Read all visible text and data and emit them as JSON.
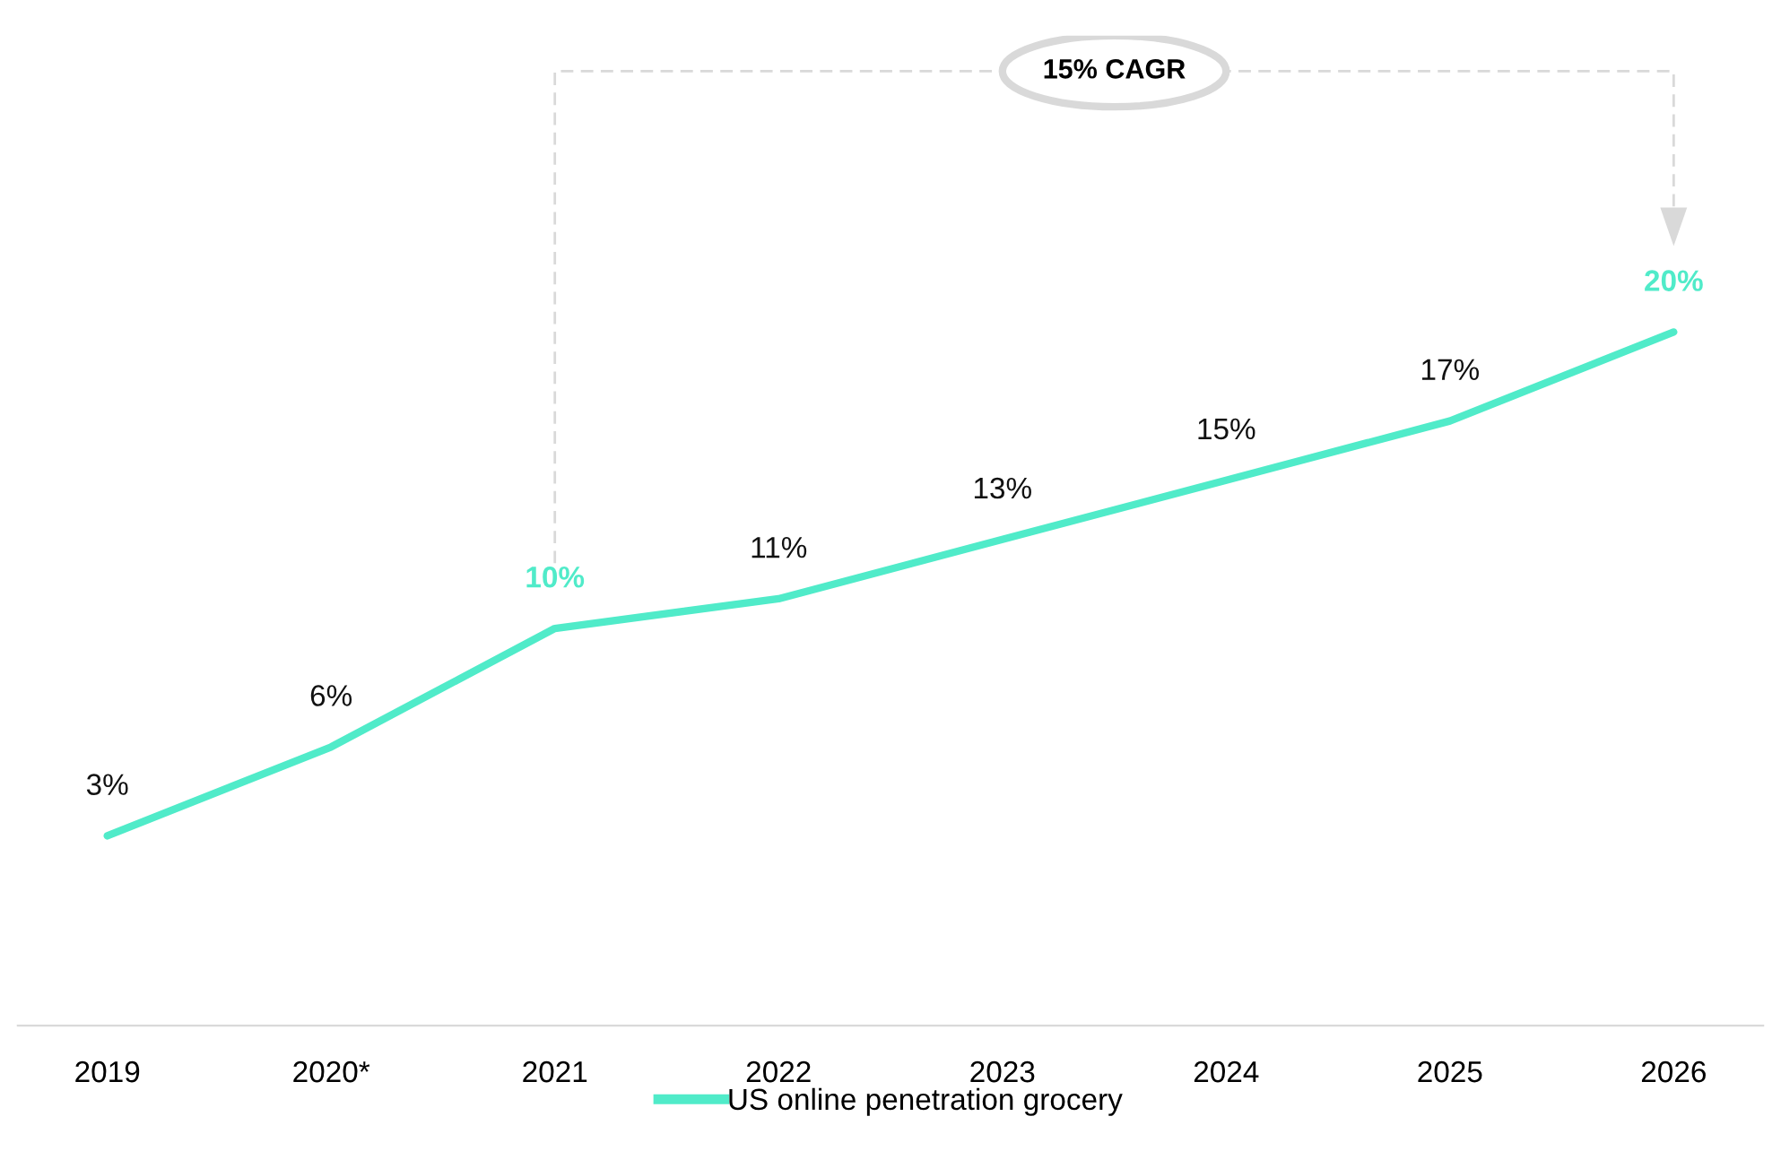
{
  "chart_data": {
    "type": "line",
    "categories": [
      "2019",
      "2020*",
      "2021",
      "2022",
      "2023",
      "2024",
      "2025",
      "2026"
    ],
    "series": [
      {
        "name": "US online penetration grocery",
        "color": "#50ebc9",
        "values": [
          3,
          6,
          10,
          11,
          13,
          15,
          17,
          20
        ],
        "value_labels": [
          "3%",
          "6%",
          null,
          "11%",
          "13%",
          "15%",
          "17%",
          null
        ]
      }
    ],
    "annotations": [
      {
        "text": "10%",
        "x": "2021",
        "y": 10
      },
      {
        "text": "20%",
        "x": "2026",
        "y": 20
      },
      "15% CAGR"
    ],
    "grid": false,
    "legend": "bottom",
    "marker": "none",
    "line_style": "solid"
  }
}
